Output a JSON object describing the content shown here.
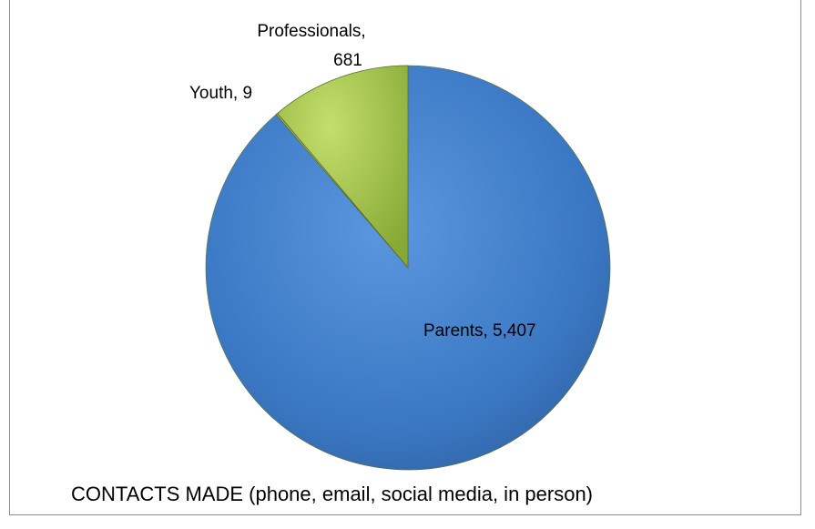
{
  "chart_data": {
    "type": "pie",
    "title": "",
    "caption": "CONTACTS MADE (phone, email, social media, in person)",
    "slices": [
      {
        "name": "Parents",
        "value": 5407,
        "label_line1": "Parents, 5,407",
        "label_line2": "",
        "color": "#3d7cc9"
      },
      {
        "name": "Youth",
        "value": 9,
        "label_line1": "Youth, 9",
        "label_line2": "",
        "color": "#8aa84a"
      },
      {
        "name": "Professionals",
        "value": 681,
        "label_line1": "Professionals,",
        "label_line2": "681",
        "color": "#9cc43b"
      }
    ],
    "legend": "none"
  }
}
